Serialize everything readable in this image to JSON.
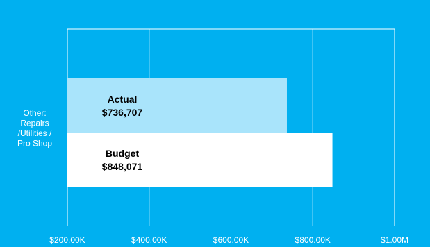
{
  "chart_data": {
    "type": "bar",
    "orientation": "horizontal",
    "categories": [
      "Other: Repairs /Utilities / Pro Shop"
    ],
    "category_label_lines": [
      "Other:",
      "Repairs",
      "/Utilities /",
      "Pro Shop"
    ],
    "series": [
      {
        "name": "Actual",
        "value_label": "$736,707",
        "values": [
          736707
        ],
        "color": "#a9e4fb"
      },
      {
        "name": "Budget",
        "value_label": "$848,071",
        "values": [
          848071
        ],
        "color": "#ffffff"
      }
    ],
    "xlim": [
      200000,
      1000000
    ],
    "x_ticks": [
      200000,
      400000,
      600000,
      800000,
      1000000
    ],
    "x_tick_labels": [
      "$200.00K",
      "$400.00K",
      "$600.00K",
      "$800.00K",
      "$1.00M"
    ],
    "grid": true,
    "gridline_color": "#ffffff",
    "background_color": "#00b0f0"
  }
}
